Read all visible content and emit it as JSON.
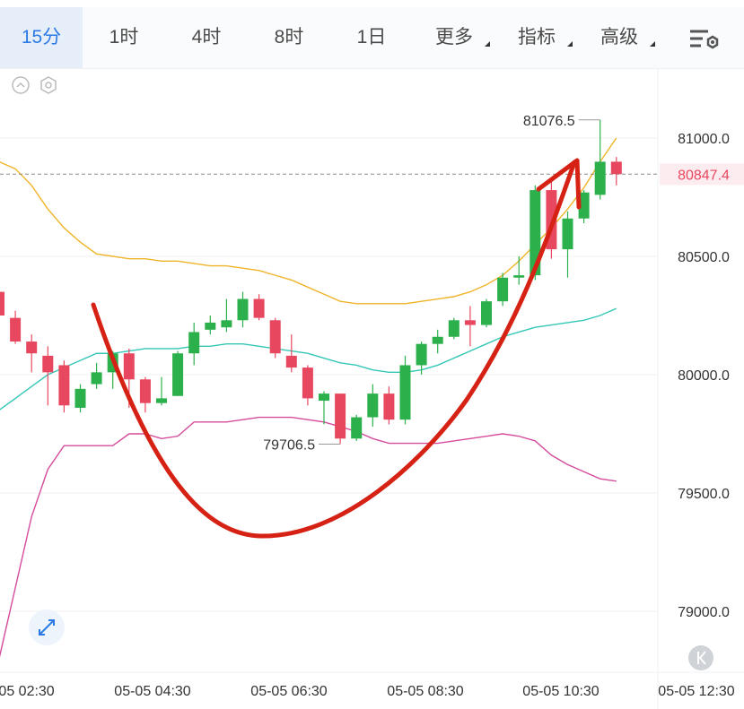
{
  "toolbar": {
    "tabs": [
      {
        "label": "15分",
        "active": true,
        "dropdown": false
      },
      {
        "label": "1时",
        "active": false,
        "dropdown": false
      },
      {
        "label": "4时",
        "active": false,
        "dropdown": false
      },
      {
        "label": "8时",
        "active": false,
        "dropdown": false
      },
      {
        "label": "1日",
        "active": false,
        "dropdown": false
      },
      {
        "label": "更多",
        "active": false,
        "dropdown": true
      },
      {
        "label": "指标",
        "active": false,
        "dropdown": true
      },
      {
        "label": "高级",
        "active": false,
        "dropdown": true
      }
    ],
    "settings_icon": "chart-settings-icon"
  },
  "icons": {
    "collapse": "chevron-up-circle-icon",
    "indicator_settings": "hexagon-gear-icon",
    "expand": "expand-arrows-icon",
    "jump_latest": "double-chevron-left-icon"
  },
  "colors": {
    "up": "#2bb04b",
    "down": "#e8485f",
    "bb_upper": "#f0b429",
    "bb_middle": "#34c7b6",
    "bb_lower": "#d54c9c",
    "accent": "#2c7be5",
    "annotation": "#d62214",
    "current_price_label": "#e8485f"
  },
  "chart_data": {
    "type": "candlestick",
    "y_axis": {
      "ticks": [
        "81000.0",
        "80500.0",
        "80000.0",
        "79500.0",
        "79000.0"
      ],
      "range": [
        78800,
        81300
      ]
    },
    "x_axis": {
      "ticks": [
        "05-05 02:30",
        "05-05 04:30",
        "05-05 06:30",
        "05-05 08:30",
        "05-05 10:30",
        "05-05 12:30"
      ]
    },
    "current_price": "80847.4",
    "high_label": "81076.5",
    "low_label": "79706.5",
    "candles": [
      {
        "o": 80350,
        "h": 80420,
        "l": 80230,
        "c": 80250
      },
      {
        "o": 80240,
        "h": 80270,
        "l": 80130,
        "c": 80140
      },
      {
        "o": 80140,
        "h": 80170,
        "l": 80010,
        "c": 80090
      },
      {
        "o": 80080,
        "h": 80120,
        "l": 79870,
        "c": 80010
      },
      {
        "o": 80040,
        "h": 80060,
        "l": 79840,
        "c": 79870
      },
      {
        "o": 79860,
        "h": 79960,
        "l": 79840,
        "c": 79940
      },
      {
        "o": 79960,
        "h": 80050,
        "l": 79940,
        "c": 80010
      },
      {
        "o": 80010,
        "h": 80100,
        "l": 79940,
        "c": 80090
      },
      {
        "o": 80090,
        "h": 80110,
        "l": 79860,
        "c": 79980
      },
      {
        "o": 79980,
        "h": 79990,
        "l": 79840,
        "c": 79880
      },
      {
        "o": 79880,
        "h": 79990,
        "l": 79870,
        "c": 79900
      },
      {
        "o": 79910,
        "h": 80100,
        "l": 79910,
        "c": 80090
      },
      {
        "o": 80090,
        "h": 80220,
        "l": 80040,
        "c": 80180
      },
      {
        "o": 80190,
        "h": 80250,
        "l": 80170,
        "c": 80220
      },
      {
        "o": 80200,
        "h": 80320,
        "l": 80180,
        "c": 80230
      },
      {
        "o": 80230,
        "h": 80350,
        "l": 80200,
        "c": 80320
      },
      {
        "o": 80320,
        "h": 80340,
        "l": 80230,
        "c": 80240
      },
      {
        "o": 80230,
        "h": 80240,
        "l": 80070,
        "c": 80090
      },
      {
        "o": 80080,
        "h": 80170,
        "l": 80010,
        "c": 80030
      },
      {
        "o": 80030,
        "h": 80040,
        "l": 79870,
        "c": 79900
      },
      {
        "o": 79890,
        "h": 79930,
        "l": 79790,
        "c": 79920
      },
      {
        "o": 79920,
        "h": 79920,
        "l": 79706.5,
        "c": 79730
      },
      {
        "o": 79730,
        "h": 79830,
        "l": 79720,
        "c": 79820
      },
      {
        "o": 79820,
        "h": 79960,
        "l": 79780,
        "c": 79920
      },
      {
        "o": 79920,
        "h": 79950,
        "l": 79790,
        "c": 79810
      },
      {
        "o": 79810,
        "h": 80080,
        "l": 79790,
        "c": 80040
      },
      {
        "o": 80040,
        "h": 80140,
        "l": 80000,
        "c": 80130
      },
      {
        "o": 80130,
        "h": 80190,
        "l": 80090,
        "c": 80160
      },
      {
        "o": 80160,
        "h": 80240,
        "l": 80150,
        "c": 80230
      },
      {
        "o": 80230,
        "h": 80290,
        "l": 80120,
        "c": 80210
      },
      {
        "o": 80210,
        "h": 80320,
        "l": 80200,
        "c": 80310
      },
      {
        "o": 80310,
        "h": 80430,
        "l": 80290,
        "c": 80410
      },
      {
        "o": 80410,
        "h": 80500,
        "l": 80380,
        "c": 80420
      },
      {
        "o": 80420,
        "h": 80800,
        "l": 80400,
        "c": 80780
      },
      {
        "o": 80780,
        "h": 80820,
        "l": 80490,
        "c": 80530
      },
      {
        "o": 80530,
        "h": 80690,
        "l": 80410,
        "c": 80660
      },
      {
        "o": 80660,
        "h": 80780,
        "l": 80640,
        "c": 80770
      },
      {
        "o": 80760,
        "h": 81076.5,
        "l": 80740,
        "c": 80900
      },
      {
        "o": 80900,
        "h": 80920,
        "l": 80800,
        "c": 80847.4
      }
    ],
    "series": [
      {
        "values": [
          80900,
          80870,
          80800,
          80700,
          80620,
          80560,
          80510,
          80500,
          80490,
          80490,
          80480,
          80480,
          80470,
          80460,
          80460,
          80450,
          80440,
          80420,
          80400,
          80370,
          80340,
          80310,
          80300,
          80300,
          80300,
          80300,
          80310,
          80320,
          80330,
          80350,
          80380,
          80420,
          80480,
          80550,
          80620,
          80700,
          80790,
          80900,
          81000
        ]
      },
      {
        "values": [
          79850,
          79900,
          79950,
          80000,
          80030,
          80060,
          80090,
          80090,
          80100,
          80110,
          80110,
          80110,
          80120,
          80120,
          80130,
          80130,
          80120,
          80110,
          80100,
          80090,
          80070,
          80050,
          80040,
          80020,
          80010,
          80010,
          80020,
          80040,
          80070,
          80100,
          80130,
          80160,
          80180,
          80200,
          80210,
          80220,
          80230,
          80250,
          80280
        ]
      },
      {
        "values": [
          78800,
          79100,
          79400,
          79600,
          79700,
          79700,
          79700,
          79700,
          79750,
          79750,
          79730,
          79740,
          79800,
          79800,
          79800,
          79810,
          79820,
          79820,
          79820,
          79810,
          79800,
          79780,
          79760,
          79730,
          79710,
          79710,
          79710,
          79710,
          79720,
          79730,
          79740,
          79750,
          79740,
          79720,
          79660,
          79620,
          79590,
          79560,
          79550
        ]
      }
    ]
  }
}
